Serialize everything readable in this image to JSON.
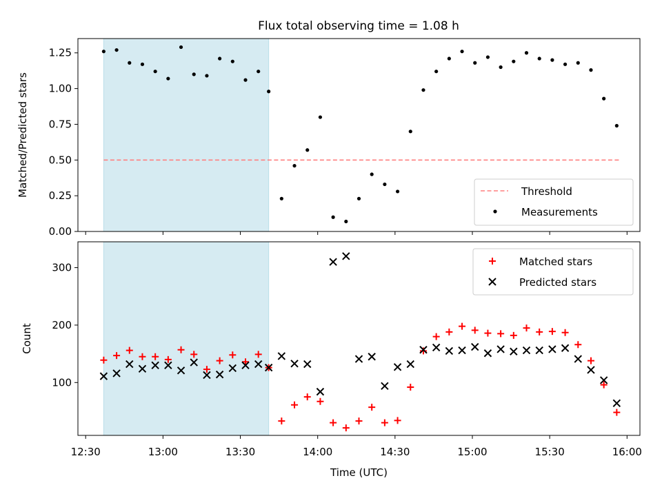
{
  "title": "Flux total observing time = 1.08 h",
  "colors": {
    "threshold": "#ff7f7f",
    "measurement": "#000000",
    "matched": "#ff0000",
    "predicted": "#000000",
    "span": "#add8e6"
  },
  "chart_data": [
    {
      "type": "scatter",
      "ylabel": "Matched/Predicted stars",
      "xlim": [
        "12:27",
        "16:05"
      ],
      "ylim": [
        0,
        1.35
      ],
      "yticks": [
        0.0,
        0.25,
        0.5,
        0.75,
        1.0,
        1.25
      ],
      "ytick_labels": [
        "0.00",
        "0.25",
        "0.50",
        "0.75",
        "1.00",
        "1.25"
      ],
      "shaded_span": [
        "12:37",
        "13:41"
      ],
      "threshold": {
        "name": "Threshold",
        "value": 0.5,
        "x": [
          "12:37",
          "15:57"
        ]
      },
      "legend": [
        "Threshold",
        "Measurements"
      ],
      "legend_position": "lower right",
      "series": [
        {
          "name": "Measurements",
          "x": [
            "12:37",
            "12:42",
            "12:47",
            "12:52",
            "12:57",
            "13:02",
            "13:07",
            "13:12",
            "13:17",
            "13:22",
            "13:27",
            "13:32",
            "13:37",
            "13:41",
            "13:46",
            "13:51",
            "13:56",
            "14:01",
            "14:06",
            "14:11",
            "14:16",
            "14:21",
            "14:26",
            "14:31",
            "14:36",
            "14:41",
            "14:46",
            "14:51",
            "14:56",
            "15:01",
            "15:06",
            "15:11",
            "15:16",
            "15:21",
            "15:26",
            "15:31",
            "15:36",
            "15:41",
            "15:46",
            "15:51",
            "15:56"
          ],
          "values": [
            1.26,
            1.27,
            1.18,
            1.17,
            1.12,
            1.07,
            1.29,
            1.1,
            1.09,
            1.21,
            1.19,
            1.06,
            1.12,
            0.98,
            0.23,
            0.46,
            0.57,
            0.8,
            0.1,
            0.07,
            0.23,
            0.4,
            0.33,
            0.28,
            0.7,
            0.99,
            1.12,
            1.21,
            1.26,
            1.18,
            1.22,
            1.15,
            1.19,
            1.25,
            1.21,
            1.2,
            1.17,
            1.18,
            1.13,
            0.93,
            0.74
          ]
        }
      ]
    },
    {
      "type": "scatter",
      "ylabel": "Count",
      "xlabel": "Time (UTC)",
      "xlim": [
        "12:27",
        "16:05"
      ],
      "ylim": [
        8,
        345
      ],
      "yticks": [
        100,
        200,
        300
      ],
      "xticks": [
        "12:30",
        "13:00",
        "13:30",
        "14:00",
        "14:30",
        "15:00",
        "15:30",
        "16:00"
      ],
      "shaded_span": [
        "12:37",
        "13:41"
      ],
      "legend": [
        "Matched stars",
        "Predicted stars"
      ],
      "legend_position": "upper right",
      "series": [
        {
          "name": "Matched stars",
          "x": [
            "12:37",
            "12:42",
            "12:47",
            "12:52",
            "12:57",
            "13:02",
            "13:07",
            "13:12",
            "13:17",
            "13:22",
            "13:27",
            "13:32",
            "13:37",
            "13:41",
            "13:46",
            "13:51",
            "13:56",
            "14:01",
            "14:06",
            "14:11",
            "14:16",
            "14:21",
            "14:26",
            "14:31",
            "14:36",
            "14:41",
            "14:46",
            "14:51",
            "14:56",
            "15:01",
            "15:06",
            "15:11",
            "15:16",
            "15:21",
            "15:26",
            "15:31",
            "15:36",
            "15:41",
            "15:46",
            "15:51",
            "15:56"
          ],
          "values": [
            139,
            147,
            156,
            145,
            145,
            140,
            157,
            149,
            123,
            138,
            148,
            136,
            149,
            126,
            33,
            61,
            75,
            67,
            30,
            21,
            33,
            57,
            30,
            34,
            92,
            155,
            180,
            188,
            198,
            191,
            186,
            185,
            182,
            195,
            188,
            189,
            187,
            166,
            138,
            96,
            48
          ]
        },
        {
          "name": "Predicted stars",
          "x": [
            "12:37",
            "12:42",
            "12:47",
            "12:52",
            "12:57",
            "13:02",
            "13:07",
            "13:12",
            "13:17",
            "13:22",
            "13:27",
            "13:32",
            "13:37",
            "13:41",
            "13:46",
            "13:51",
            "13:56",
            "14:01",
            "14:06",
            "14:11",
            "14:16",
            "14:21",
            "14:26",
            "14:31",
            "14:36",
            "14:41",
            "14:46",
            "14:51",
            "14:56",
            "15:01",
            "15:06",
            "15:11",
            "15:16",
            "15:21",
            "15:26",
            "15:31",
            "15:36",
            "15:41",
            "15:46",
            "15:51",
            "15:56"
          ],
          "values": [
            111,
            116,
            132,
            124,
            130,
            130,
            121,
            135,
            113,
            114,
            125,
            130,
            132,
            126,
            146,
            133,
            132,
            84,
            310,
            320,
            141,
            145,
            94,
            127,
            132,
            157,
            161,
            155,
            156,
            162,
            151,
            158,
            154,
            156,
            156,
            158,
            160,
            141,
            122,
            104,
            64
          ]
        }
      ]
    }
  ]
}
